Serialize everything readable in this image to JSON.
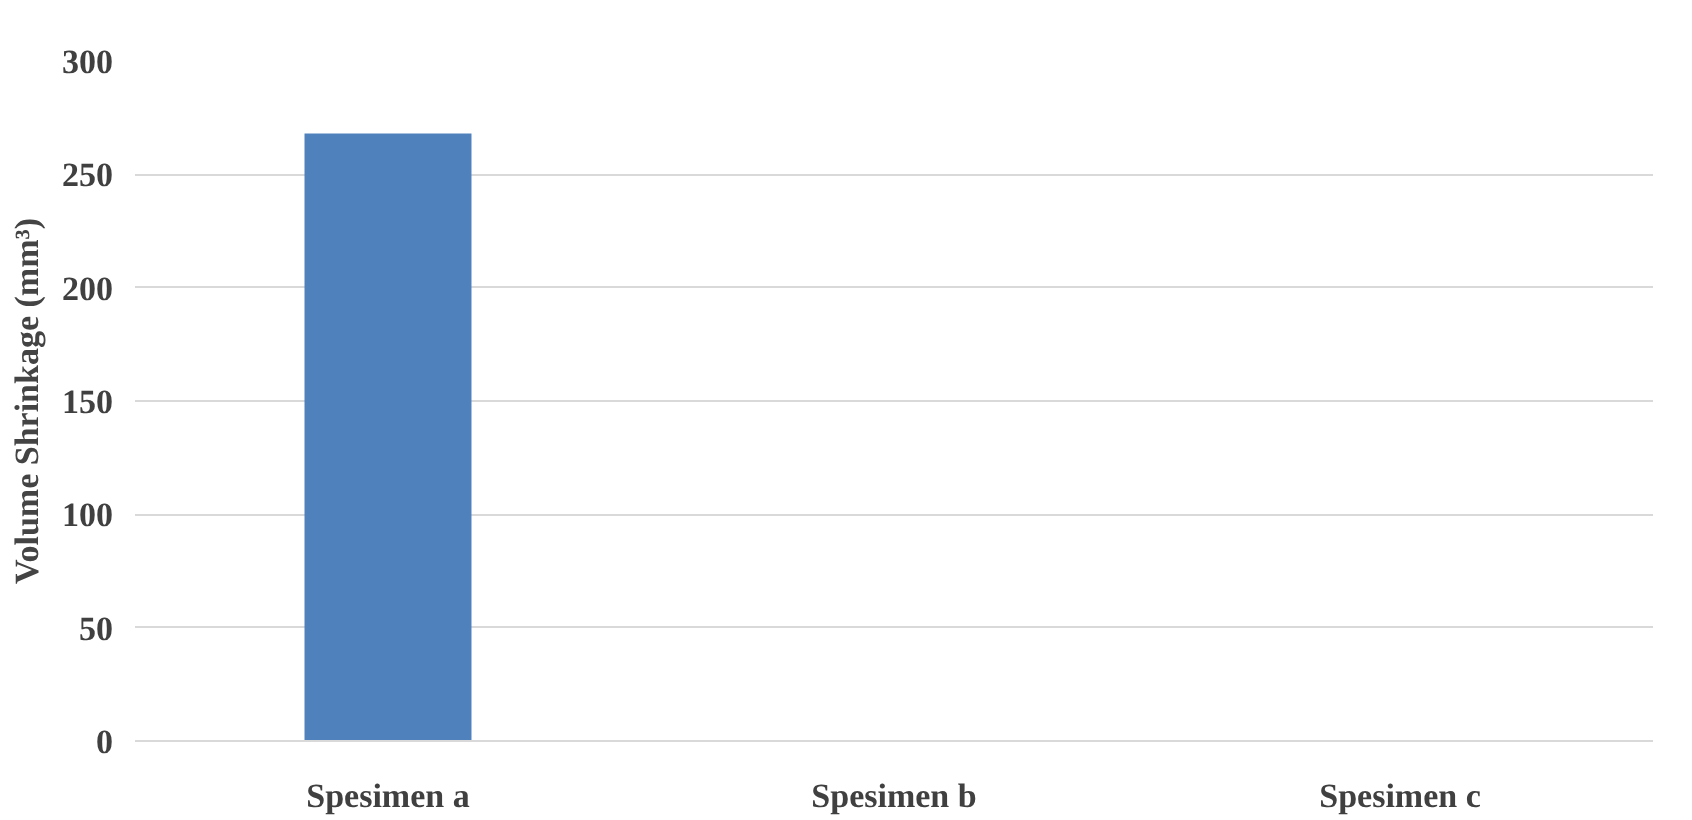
{
  "chart_data": {
    "type": "bar",
    "ylabel": "Volume Shrinkage (mm³)",
    "categories": [
      "Spesimen a",
      "Spesimen b",
      "Spesimen c"
    ],
    "values": [
      268,
      0,
      0
    ],
    "color": "#4f81bd",
    "ylim": [
      0,
      300
    ],
    "yticks": [
      0,
      50,
      100,
      150,
      200,
      250,
      300
    ],
    "grid": "y"
  }
}
